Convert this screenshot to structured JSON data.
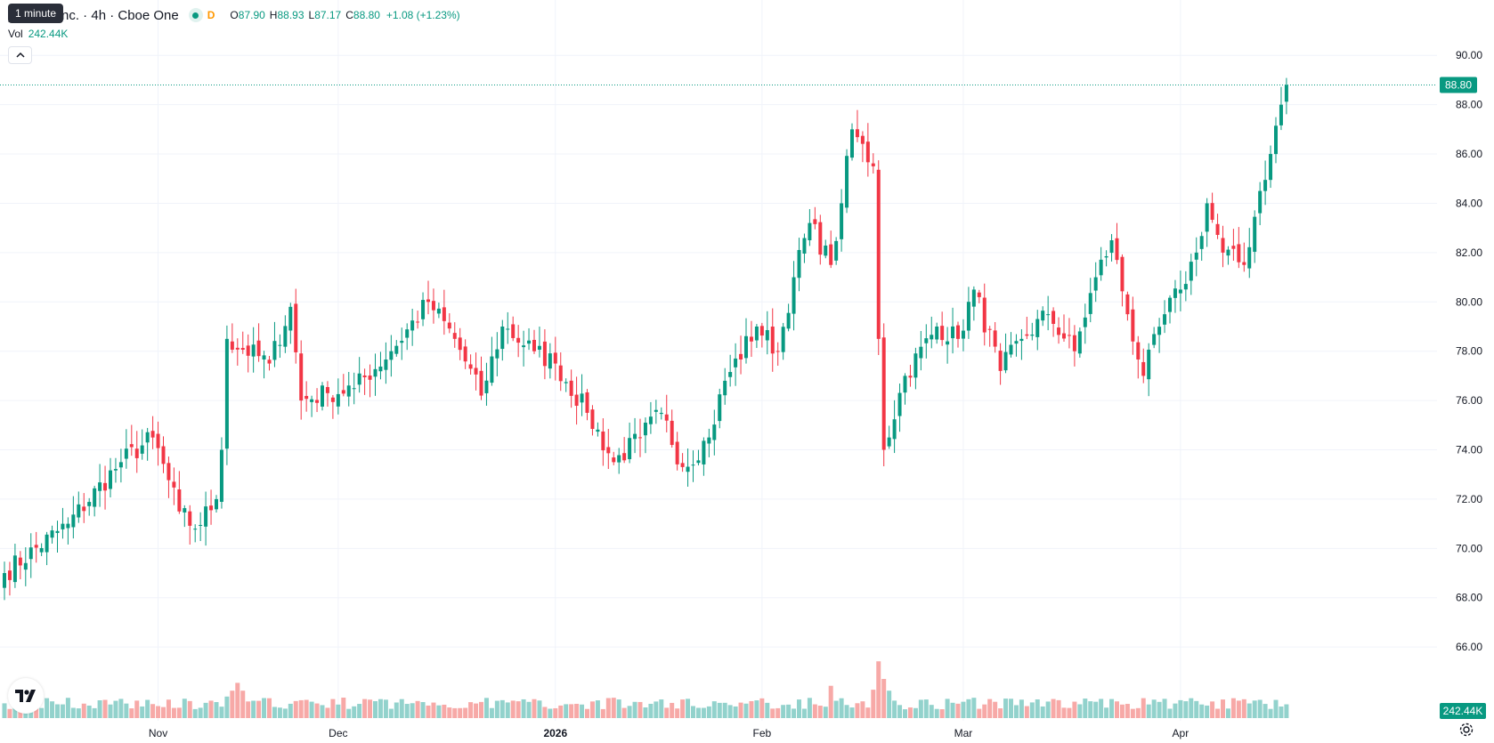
{
  "header": {
    "title": "ystems, Inc. · 4h · Cboe One",
    "delayed_badge": "D",
    "ohlc": {
      "o_label": "O",
      "o": "87.90",
      "h_label": "H",
      "h": "88.93",
      "l_label": "L",
      "l": "87.17",
      "c_label": "C",
      "c": "88.80",
      "change": "+1.08 (+1.23%)"
    }
  },
  "tooltip": "1 minute",
  "volume": {
    "label": "Vol",
    "value": "242.44K"
  },
  "price_scale": {
    "last_price_label": "88.80",
    "volume_label": "242.44K",
    "ticks": [
      "90.00",
      "88.00",
      "86.00",
      "84.00",
      "82.00",
      "80.00",
      "78.00",
      "76.00",
      "74.00",
      "72.00",
      "70.00",
      "68.00",
      "66.00"
    ]
  },
  "time_labels": [
    "Nov",
    "Dec",
    "2026",
    "Feb",
    "Mar",
    "Apr"
  ],
  "colors": {
    "up": "#089981",
    "down": "#f23645",
    "up_volume": "#92d2cc",
    "down_volume": "#f7a9a7"
  },
  "icons": {
    "logo": "tradingview-logo-icon",
    "collapse": "chevron-up-icon",
    "settings": "gear-icon"
  },
  "chart_data": {
    "type": "candlestick",
    "interval": "4h",
    "y_range": [
      65.5,
      91.2
    ],
    "last_price": 88.8,
    "x_axis": [
      {
        "label": "Nov",
        "bar": 29
      },
      {
        "label": "Dec",
        "bar": 63
      },
      {
        "label": "2026",
        "bar": 104
      },
      {
        "label": "Feb",
        "bar": 143
      },
      {
        "label": "Mar",
        "bar": 181
      },
      {
        "label": "Apr",
        "bar": 222
      }
    ],
    "anchors": [
      [
        0,
        69.0
      ],
      [
        12,
        71.0
      ],
      [
        22,
        73.5
      ],
      [
        28,
        74.5
      ],
      [
        33,
        71.5
      ],
      [
        36,
        70.8
      ],
      [
        40,
        72.0
      ],
      [
        41,
        74.0
      ],
      [
        42,
        78.5
      ],
      [
        50,
        77.5
      ],
      [
        54,
        79.8
      ],
      [
        56,
        76.0
      ],
      [
        61,
        76.3
      ],
      [
        66,
        76.5
      ],
      [
        73,
        78.0
      ],
      [
        80,
        80.0
      ],
      [
        85,
        78.5
      ],
      [
        90,
        76.2
      ],
      [
        94,
        79.0
      ],
      [
        100,
        78.0
      ],
      [
        104,
        77.5
      ],
      [
        110,
        75.5
      ],
      [
        115,
        73.5
      ],
      [
        120,
        74.5
      ],
      [
        124,
        75.5
      ],
      [
        128,
        73.3
      ],
      [
        133,
        74.5
      ],
      [
        136,
        76.8
      ],
      [
        142,
        79.0
      ],
      [
        146,
        78.0
      ],
      [
        149,
        81.0
      ],
      [
        152,
        83.2
      ],
      [
        156,
        81.5
      ],
      [
        158,
        84.0
      ],
      [
        160,
        87.0
      ],
      [
        164,
        85.5
      ],
      [
        165,
        78.5
      ],
      [
        166,
        74.0
      ],
      [
        170,
        77.0
      ],
      [
        176,
        79.0
      ],
      [
        180,
        78.5
      ],
      [
        183,
        80.5
      ],
      [
        188,
        77.2
      ],
      [
        192,
        78.5
      ],
      [
        197,
        79.5
      ],
      [
        202,
        78.0
      ],
      [
        206,
        81.0
      ],
      [
        209,
        82.5
      ],
      [
        212,
        79.5
      ],
      [
        215,
        77.0
      ],
      [
        219,
        79.5
      ],
      [
        222,
        80.5
      ],
      [
        225,
        82.0
      ],
      [
        227,
        84.0
      ],
      [
        230,
        82.0
      ],
      [
        234,
        81.5
      ],
      [
        237,
        84.5
      ],
      [
        239,
        86.0
      ],
      [
        241,
        88.0
      ],
      [
        242,
        88.8
      ]
    ],
    "volume_spikes": [
      [
        42,
        2.2
      ],
      [
        43,
        2.8
      ],
      [
        44,
        3.6
      ],
      [
        45,
        2.8
      ],
      [
        46,
        1.7
      ],
      [
        150,
        1.9
      ],
      [
        156,
        3.3
      ],
      [
        164,
        2.9
      ],
      [
        165,
        5.8
      ],
      [
        166,
        4.0
      ],
      [
        167,
        2.8
      ]
    ]
  }
}
